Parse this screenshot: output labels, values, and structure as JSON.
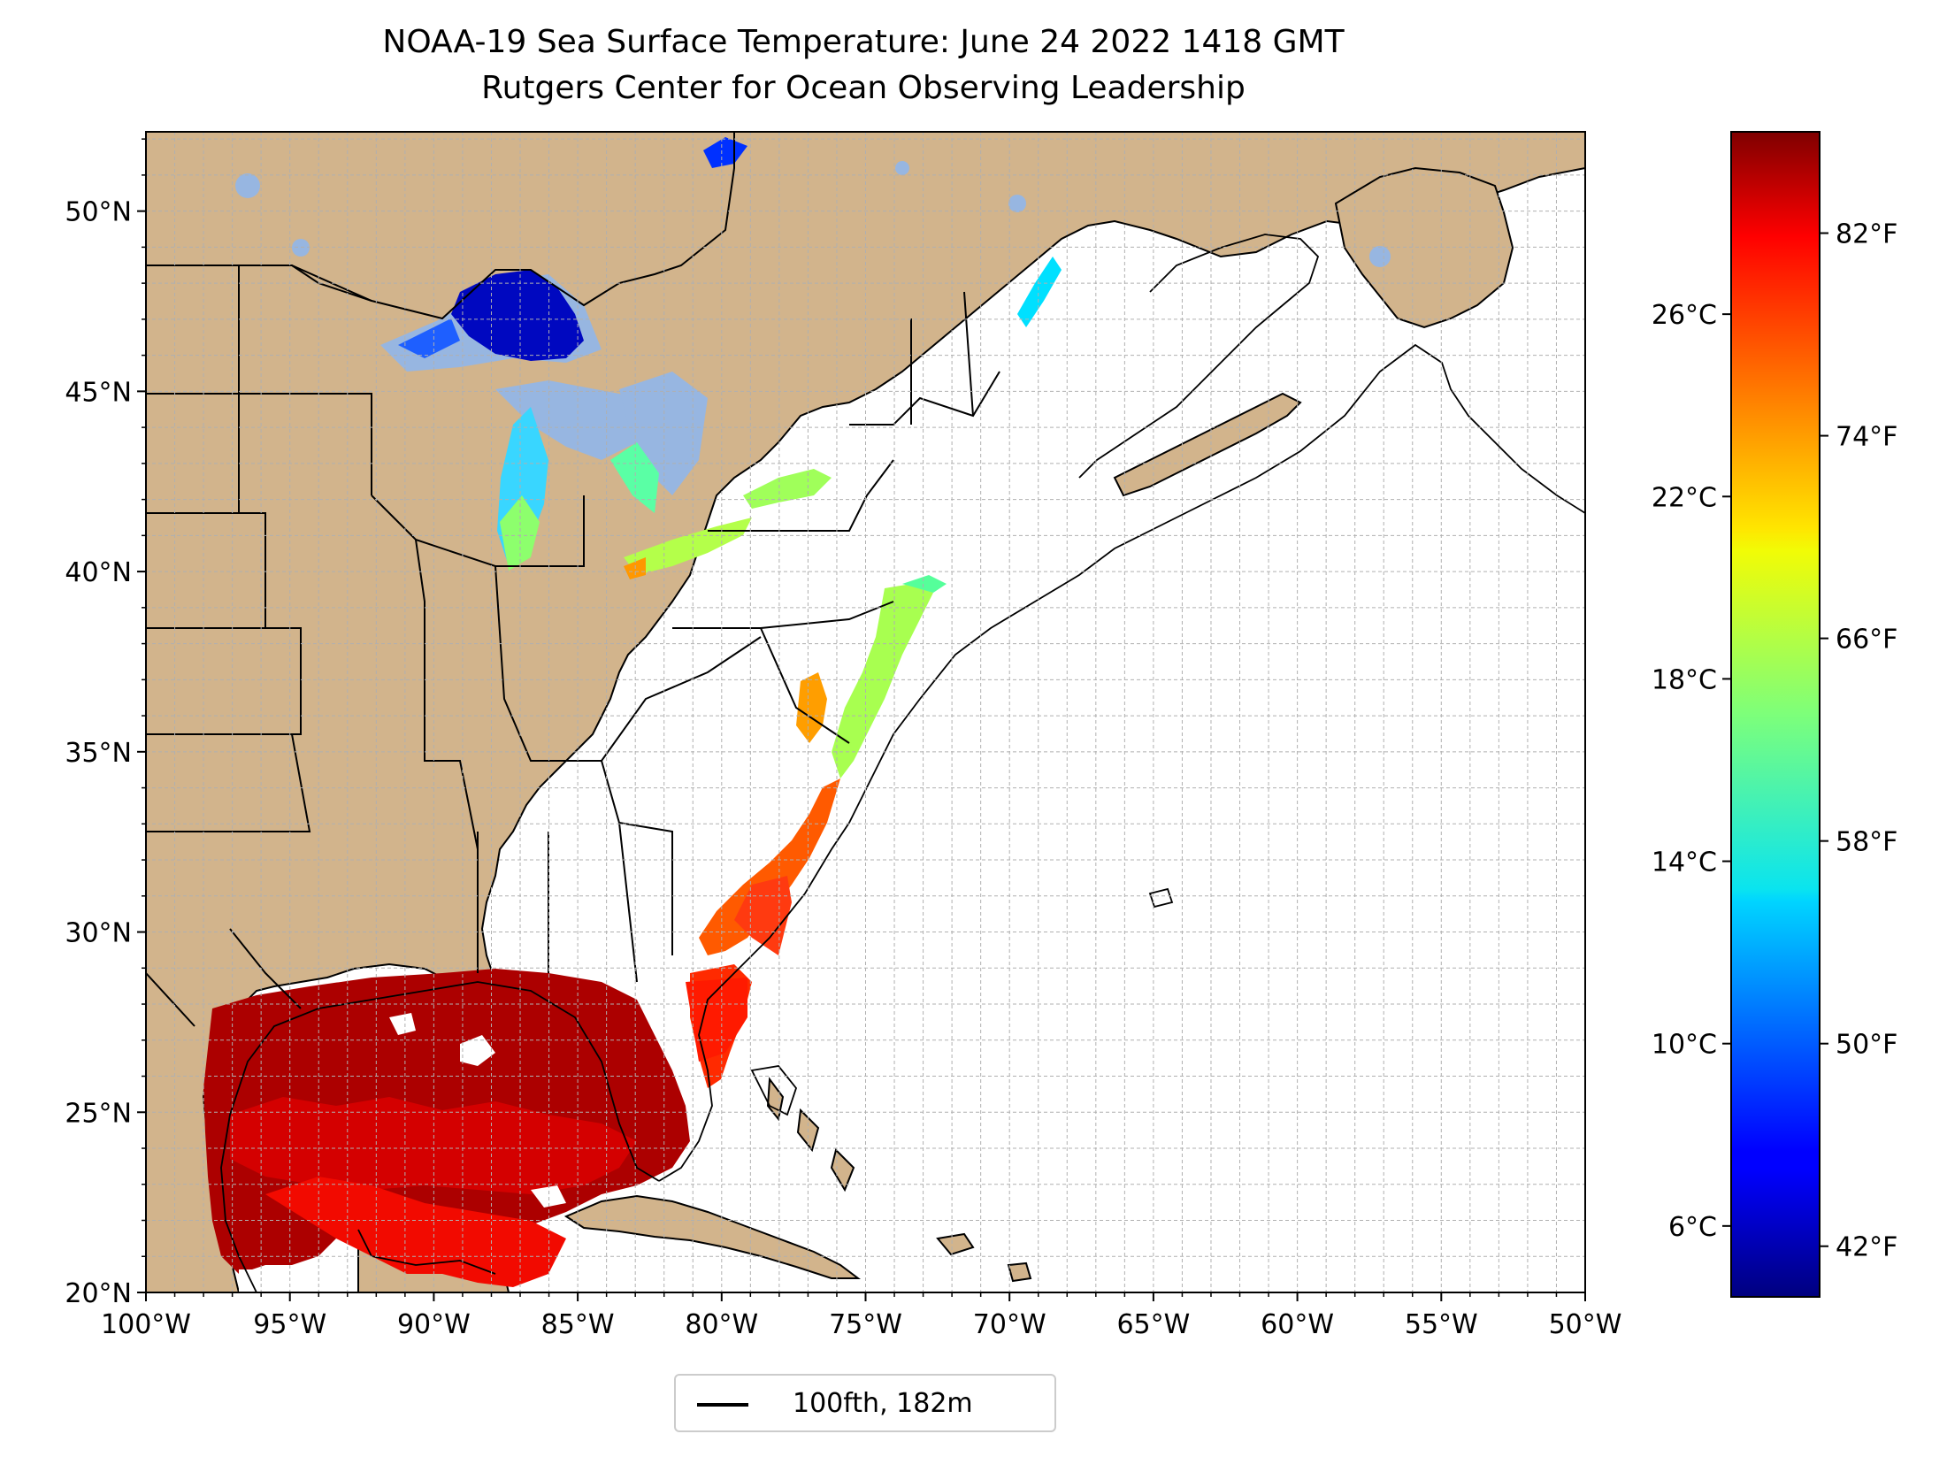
{
  "title": {
    "line1": "NOAA-19 Sea Surface Temperature: June 24 2022 1418 GMT",
    "line2": "Rutgers Center for Ocean Observing Leadership"
  },
  "map": {
    "extent": {
      "lon_min": -100,
      "lon_max": -50,
      "lat_min": 20,
      "lat_max": 52.2
    },
    "lon_ticks": [
      {
        "value": -100,
        "label": "100°W"
      },
      {
        "value": -95,
        "label": "95°W"
      },
      {
        "value": -90,
        "label": "90°W"
      },
      {
        "value": -85,
        "label": "85°W"
      },
      {
        "value": -80,
        "label": "80°W"
      },
      {
        "value": -75,
        "label": "75°W"
      },
      {
        "value": -70,
        "label": "70°W"
      },
      {
        "value": -65,
        "label": "65°W"
      },
      {
        "value": -60,
        "label": "60°W"
      },
      {
        "value": -55,
        "label": "55°W"
      },
      {
        "value": -50,
        "label": "50°W"
      }
    ],
    "lat_ticks": [
      {
        "value": 20,
        "label": "20°N"
      },
      {
        "value": 25,
        "label": "25°N"
      },
      {
        "value": 30,
        "label": "30°N"
      },
      {
        "value": 35,
        "label": "35°N"
      },
      {
        "value": 40,
        "label": "40°N"
      },
      {
        "value": 45,
        "label": "45°N"
      },
      {
        "value": 50,
        "label": "50°N"
      }
    ],
    "grid": "dashed, 1° interval",
    "colors": {
      "land": "#d2b48c",
      "ocean": "#ffffff",
      "lakes_nodata": "#97b6e1",
      "grid": "#b0b0b0"
    }
  },
  "colorbar": {
    "colormap": "jet",
    "celsius_ticks": [
      {
        "value": 6,
        "label": "6°C"
      },
      {
        "value": 10,
        "label": "10°C"
      },
      {
        "value": 14,
        "label": "14°C"
      },
      {
        "value": 18,
        "label": "18°C"
      },
      {
        "value": 22,
        "label": "22°C"
      },
      {
        "value": 26,
        "label": "26°C"
      }
    ],
    "fahrenheit_ticks": [
      {
        "value": 42,
        "label": "42°F"
      },
      {
        "value": 50,
        "label": "50°F"
      },
      {
        "value": 58,
        "label": "58°F"
      },
      {
        "value": 66,
        "label": "66°F"
      },
      {
        "value": 74,
        "label": "74°F"
      },
      {
        "value": 82,
        "label": "82°F"
      }
    ],
    "range_f": [
      40,
      86
    ]
  },
  "legend": {
    "entries": [
      {
        "label": "100fth, 182m",
        "color": "#000000"
      }
    ]
  }
}
